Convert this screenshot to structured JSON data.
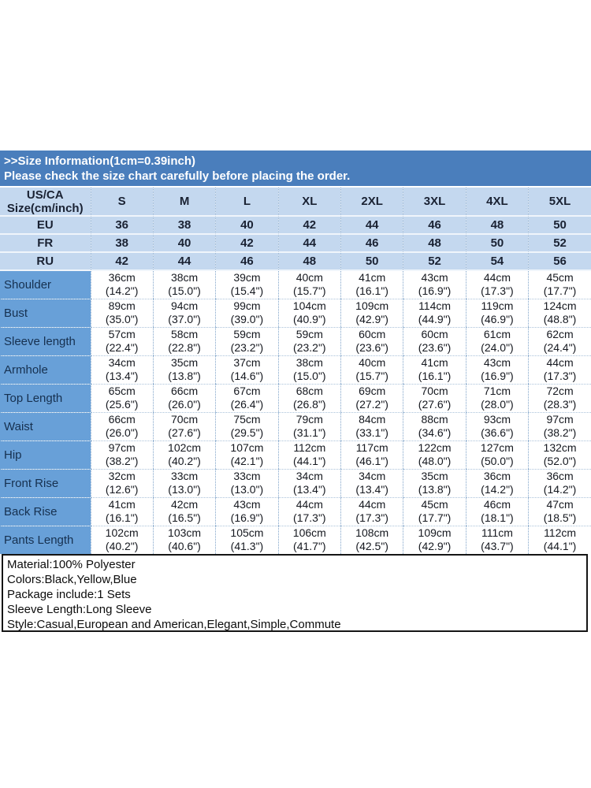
{
  "banner": {
    "line1": ">>Size Information(1cm=0.39inch)",
    "line2": "Please check the size chart carefully before placing the order.",
    "bg_color": "#4a7ebc",
    "text_color": "#ffffff"
  },
  "size_table": {
    "corner_header": {
      "line1": "US/CA",
      "line2": "Size(cm/inch)"
    },
    "sizes": [
      "S",
      "M",
      "L",
      "XL",
      "2XL",
      "3XL",
      "4XL",
      "5XL"
    ],
    "conversion_rows": [
      {
        "label": "EU",
        "values": [
          "36",
          "38",
          "40",
          "42",
          "44",
          "46",
          "48",
          "50"
        ]
      },
      {
        "label": "FR",
        "values": [
          "38",
          "40",
          "42",
          "44",
          "46",
          "48",
          "50",
          "52"
        ]
      },
      {
        "label": "RU",
        "values": [
          "42",
          "44",
          "46",
          "48",
          "50",
          "52",
          "54",
          "56"
        ]
      }
    ],
    "measurement_rows": [
      {
        "label": "Shoulder",
        "values": [
          {
            "cm": "36cm",
            "in": "(14.2\")"
          },
          {
            "cm": "38cm",
            "in": "(15.0\")"
          },
          {
            "cm": "39cm",
            "in": "(15.4\")"
          },
          {
            "cm": "40cm",
            "in": "(15.7\")"
          },
          {
            "cm": "41cm",
            "in": "(16.1\")"
          },
          {
            "cm": "43cm",
            "in": "(16.9\")"
          },
          {
            "cm": "44cm",
            "in": "(17.3\")"
          },
          {
            "cm": "45cm",
            "in": "(17.7\")"
          }
        ]
      },
      {
        "label": "Bust",
        "values": [
          {
            "cm": "89cm",
            "in": "(35.0\")"
          },
          {
            "cm": "94cm",
            "in": "(37.0\")"
          },
          {
            "cm": "99cm",
            "in": "(39.0\")"
          },
          {
            "cm": "104cm",
            "in": "(40.9\")"
          },
          {
            "cm": "109cm",
            "in": "(42.9\")"
          },
          {
            "cm": "114cm",
            "in": "(44.9\")"
          },
          {
            "cm": "119cm",
            "in": "(46.9\")"
          },
          {
            "cm": "124cm",
            "in": "(48.8\")"
          }
        ]
      },
      {
        "label": "Sleeve length",
        "values": [
          {
            "cm": "57cm",
            "in": "(22.4\")"
          },
          {
            "cm": "58cm",
            "in": "(22.8\")"
          },
          {
            "cm": "59cm",
            "in": "(23.2\")"
          },
          {
            "cm": "59cm",
            "in": "(23.2\")"
          },
          {
            "cm": "60cm",
            "in": "(23.6\")"
          },
          {
            "cm": "60cm",
            "in": "(23.6\")"
          },
          {
            "cm": "61cm",
            "in": "(24.0\")"
          },
          {
            "cm": "62cm",
            "in": "(24.4\")"
          }
        ]
      },
      {
        "label": "Armhole",
        "values": [
          {
            "cm": "34cm",
            "in": "(13.4\")"
          },
          {
            "cm": "35cm",
            "in": "(13.8\")"
          },
          {
            "cm": "37cm",
            "in": "(14.6\")"
          },
          {
            "cm": "38cm",
            "in": "(15.0\")"
          },
          {
            "cm": "40cm",
            "in": "(15.7\")"
          },
          {
            "cm": "41cm",
            "in": "(16.1\")"
          },
          {
            "cm": "43cm",
            "in": "(16.9\")"
          },
          {
            "cm": "44cm",
            "in": "(17.3\")"
          }
        ]
      },
      {
        "label": "Top Length",
        "values": [
          {
            "cm": "65cm",
            "in": "(25.6\")"
          },
          {
            "cm": "66cm",
            "in": "(26.0\")"
          },
          {
            "cm": "67cm",
            "in": "(26.4\")"
          },
          {
            "cm": "68cm",
            "in": "(26.8\")"
          },
          {
            "cm": "69cm",
            "in": "(27.2\")"
          },
          {
            "cm": "70cm",
            "in": "(27.6\")"
          },
          {
            "cm": "71cm",
            "in": "(28.0\")"
          },
          {
            "cm": "72cm",
            "in": "(28.3\")"
          }
        ]
      },
      {
        "label": "Waist",
        "values": [
          {
            "cm": "66cm",
            "in": "(26.0\")"
          },
          {
            "cm": "70cm",
            "in": "(27.6\")"
          },
          {
            "cm": "75cm",
            "in": "(29.5\")"
          },
          {
            "cm": "79cm",
            "in": "(31.1\")"
          },
          {
            "cm": "84cm",
            "in": "(33.1\")"
          },
          {
            "cm": "88cm",
            "in": "(34.6\")"
          },
          {
            "cm": "93cm",
            "in": "(36.6\")"
          },
          {
            "cm": "97cm",
            "in": "(38.2\")"
          }
        ]
      },
      {
        "label": "Hip",
        "values": [
          {
            "cm": "97cm",
            "in": "(38.2\")"
          },
          {
            "cm": "102cm",
            "in": "(40.2\")"
          },
          {
            "cm": "107cm",
            "in": "(42.1\")"
          },
          {
            "cm": "112cm",
            "in": "(44.1\")"
          },
          {
            "cm": "117cm",
            "in": "(46.1\")"
          },
          {
            "cm": "122cm",
            "in": "(48.0\")"
          },
          {
            "cm": "127cm",
            "in": "(50.0\")"
          },
          {
            "cm": "132cm",
            "in": "(52.0\")"
          }
        ]
      },
      {
        "label": "Front Rise",
        "values": [
          {
            "cm": "32cm",
            "in": "(12.6\")"
          },
          {
            "cm": "33cm",
            "in": "(13.0\")"
          },
          {
            "cm": "33cm",
            "in": "(13.0\")"
          },
          {
            "cm": "34cm",
            "in": "(13.4\")"
          },
          {
            "cm": "34cm",
            "in": "(13.4\")"
          },
          {
            "cm": "35cm",
            "in": "(13.8\")"
          },
          {
            "cm": "36cm",
            "in": "(14.2\")"
          },
          {
            "cm": "36cm",
            "in": "(14.2\")"
          }
        ]
      },
      {
        "label": "Back Rise",
        "values": [
          {
            "cm": "41cm",
            "in": "(16.1\")"
          },
          {
            "cm": "42cm",
            "in": "(16.5\")"
          },
          {
            "cm": "43cm",
            "in": "(16.9\")"
          },
          {
            "cm": "44cm",
            "in": "(17.3\")"
          },
          {
            "cm": "44cm",
            "in": "(17.3\")"
          },
          {
            "cm": "45cm",
            "in": "(17.7\")"
          },
          {
            "cm": "46cm",
            "in": "(18.1\")"
          },
          {
            "cm": "47cm",
            "in": "(18.5\")"
          }
        ]
      },
      {
        "label": "Pants Length",
        "values": [
          {
            "cm": "102cm",
            "in": "(40.2\")"
          },
          {
            "cm": "103cm",
            "in": "(40.6\")"
          },
          {
            "cm": "105cm",
            "in": "(41.3\")"
          },
          {
            "cm": "106cm",
            "in": "(41.7\")"
          },
          {
            "cm": "108cm",
            "in": "(42.5\")"
          },
          {
            "cm": "109cm",
            "in": "(42.9\")"
          },
          {
            "cm": "111cm",
            "in": "(43.7\")"
          },
          {
            "cm": "112cm",
            "in": "(44.1\")"
          }
        ]
      }
    ],
    "colors": {
      "banner_bg": "#4a7ebc",
      "header_row_bg": "#c4d8ef",
      "label_column_bg": "#68a0d8",
      "cell_bg": "#ffffff",
      "grid_dotted": "#7fa3c9"
    }
  },
  "product_info": {
    "lines": [
      "Material:100% Polyester",
      "Colors:Black,Yellow,Blue",
      "Package include:1 Sets",
      "Sleeve Length:Long Sleeve",
      "Style:Casual,European and American,Elegant,Simple,Commute"
    ]
  }
}
